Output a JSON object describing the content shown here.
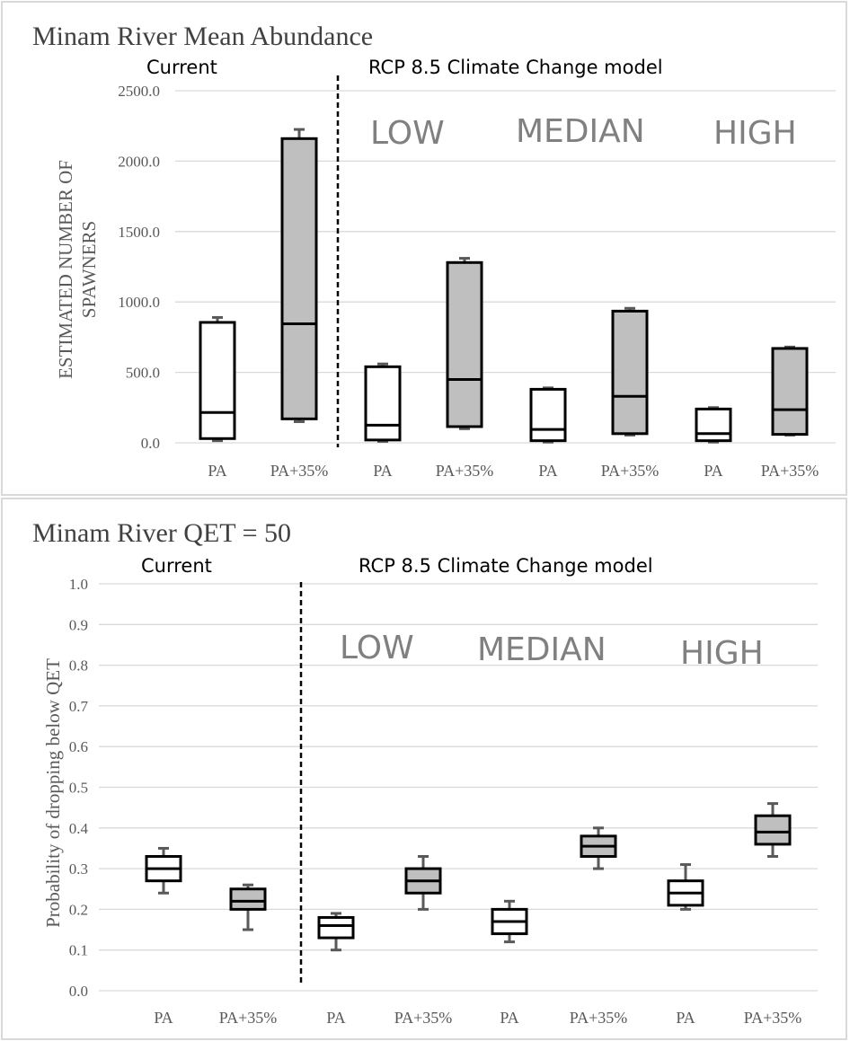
{
  "chart_data": [
    {
      "type": "box",
      "title": "Minam River Mean Abundance",
      "ylabel": "ESTIMATED NUMBER OF SPAWNERS",
      "xlabel": "",
      "ylim": [
        0,
        2500
      ],
      "yticks": [
        "0.0",
        "500.0",
        "1000.0",
        "1500.0",
        "2000.0",
        "2500.0"
      ],
      "grid": true,
      "section_labels": [
        "Current",
        "RCP 8.5 Climate Change model"
      ],
      "scenario_labels": [
        "LOW",
        "MEDIAN",
        "HIGH"
      ],
      "categories": [
        "PA",
        "PA+35%",
        "PA",
        "PA+35%",
        "PA",
        "PA+35%",
        "PA",
        "PA+35%"
      ],
      "fills": [
        "#ffffff",
        "#bfbfbf",
        "#ffffff",
        "#bfbfbf",
        "#ffffff",
        "#bfbfbf",
        "#ffffff",
        "#bfbfbf"
      ],
      "boxes": [
        {
          "min": 15,
          "q1": 30,
          "median": 215,
          "q3": 855,
          "max": 890
        },
        {
          "min": 150,
          "q1": 170,
          "median": 845,
          "q3": 2160,
          "max": 2225
        },
        {
          "min": 10,
          "q1": 20,
          "median": 125,
          "q3": 540,
          "max": 560
        },
        {
          "min": 100,
          "q1": 115,
          "median": 450,
          "q3": 1280,
          "max": 1310
        },
        {
          "min": 5,
          "q1": 15,
          "median": 95,
          "q3": 380,
          "max": 390
        },
        {
          "min": 55,
          "q1": 65,
          "median": 330,
          "q3": 935,
          "max": 955
        },
        {
          "min": 5,
          "q1": 15,
          "median": 65,
          "q3": 240,
          "max": 250
        },
        {
          "min": 55,
          "q1": 60,
          "median": 235,
          "q3": 670,
          "max": 680
        }
      ]
    },
    {
      "type": "box",
      "title": "Minam River QET = 50",
      "ylabel": "Probability of dropping below QET",
      "xlabel": "",
      "ylim": [
        0,
        1
      ],
      "yticks": [
        "0.0",
        "0.1",
        "0.2",
        "0.3",
        "0.4",
        "0.5",
        "0.6",
        "0.7",
        "0.8",
        "0.9",
        "1.0"
      ],
      "grid": true,
      "section_labels": [
        "Current",
        "RCP 8.5 Climate Change model"
      ],
      "scenario_labels": [
        "LOW",
        "MEDIAN",
        "HIGH"
      ],
      "categories": [
        "PA",
        "PA+35%",
        "PA",
        "PA+35%",
        "PA",
        "PA+35%",
        "PA",
        "PA+35%"
      ],
      "fills": [
        "#ffffff",
        "#bfbfbf",
        "#ffffff",
        "#bfbfbf",
        "#ffffff",
        "#bfbfbf",
        "#ffffff",
        "#bfbfbf"
      ],
      "boxes": [
        {
          "min": 0.24,
          "q1": 0.27,
          "median": 0.3,
          "q3": 0.33,
          "max": 0.35
        },
        {
          "min": 0.15,
          "q1": 0.2,
          "median": 0.22,
          "q3": 0.25,
          "max": 0.26
        },
        {
          "min": 0.1,
          "q1": 0.13,
          "median": 0.16,
          "q3": 0.18,
          "max": 0.19
        },
        {
          "min": 0.2,
          "q1": 0.24,
          "median": 0.27,
          "q3": 0.3,
          "max": 0.33
        },
        {
          "min": 0.12,
          "q1": 0.14,
          "median": 0.17,
          "q3": 0.2,
          "max": 0.22
        },
        {
          "min": 0.3,
          "q1": 0.33,
          "median": 0.355,
          "q3": 0.38,
          "max": 0.4
        },
        {
          "min": 0.2,
          "q1": 0.21,
          "median": 0.24,
          "q3": 0.27,
          "max": 0.31
        },
        {
          "min": 0.33,
          "q1": 0.36,
          "median": 0.39,
          "q3": 0.43,
          "max": 0.46
        }
      ]
    }
  ]
}
